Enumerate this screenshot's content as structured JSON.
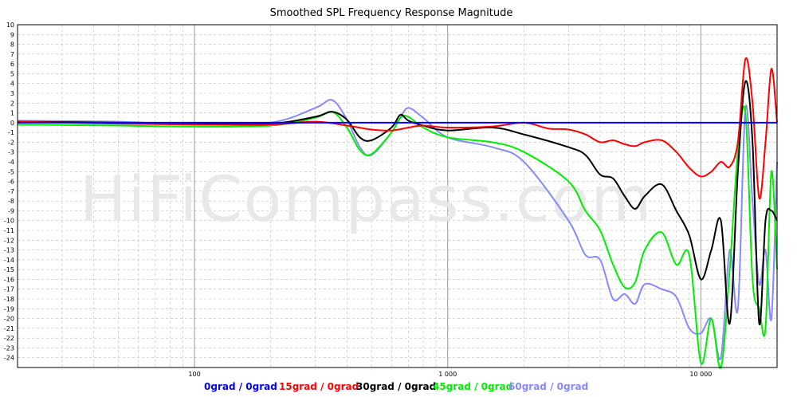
{
  "chart_data": {
    "type": "line",
    "title": "Smoothed SPL Frequency Response Magnitude",
    "watermark": "HiFiCompass.com",
    "xscale": "log",
    "xlim": [
      20,
      20000
    ],
    "ylim": [
      -25,
      10
    ],
    "x_tick_labels": [
      {
        "value": 100,
        "label": "100"
      },
      {
        "value": 1000,
        "label": "1 000"
      },
      {
        "value": 10000,
        "label": "10 000"
      }
    ],
    "y_ticks": [
      10,
      9,
      8,
      7,
      6,
      5,
      4,
      3,
      2,
      1,
      0,
      -1,
      -2,
      -3,
      -4,
      -5,
      -6,
      -7,
      -8,
      -9,
      -10,
      -11,
      -12,
      -13,
      -14,
      -15,
      -16,
      -17,
      -18,
      -19,
      -20,
      -21,
      -22,
      -23,
      -24
    ],
    "grid": true,
    "legend_position": "bottom",
    "colors": {
      "background": "#ffffff",
      "grid_major": "#999999",
      "grid_minor": "#bbbbbb",
      "axis": "#000000"
    },
    "series": [
      {
        "name": "0grad / 0grad",
        "color": "#0000ff",
        "points": [
          [
            20,
            0
          ],
          [
            20000,
            0
          ]
        ]
      },
      {
        "name": "15grad / 0grad",
        "color": "#ff0000",
        "points": [
          [
            20,
            0.1
          ],
          [
            50,
            -0.1
          ],
          [
            100,
            -0.2
          ],
          [
            200,
            -0.2
          ],
          [
            300,
            0.1
          ],
          [
            400,
            -0.3
          ],
          [
            500,
            -0.7
          ],
          [
            600,
            -0.8
          ],
          [
            700,
            -0.5
          ],
          [
            800,
            -0.3
          ],
          [
            1000,
            -0.5
          ],
          [
            1500,
            -0.4
          ],
          [
            2000,
            0
          ],
          [
            2500,
            -0.6
          ],
          [
            3000,
            -0.7
          ],
          [
            3500,
            -1.2
          ],
          [
            4000,
            -2
          ],
          [
            4500,
            -1.8
          ],
          [
            5000,
            -2.2
          ],
          [
            5500,
            -2.4
          ],
          [
            6000,
            -2
          ],
          [
            7000,
            -1.8
          ],
          [
            8000,
            -3
          ],
          [
            9000,
            -4.6
          ],
          [
            10000,
            -5.5
          ],
          [
            11000,
            -5
          ],
          [
            12000,
            -4
          ],
          [
            13000,
            -4.5
          ],
          [
            14000,
            -2
          ],
          [
            15000,
            6.5
          ],
          [
            16000,
            2
          ],
          [
            17000,
            -7.7
          ],
          [
            18000,
            -2
          ],
          [
            19000,
            5.5
          ],
          [
            20000,
            0
          ]
        ]
      },
      {
        "name": "30grad / 0grad",
        "color": "#000000",
        "points": [
          [
            20,
            0.1
          ],
          [
            50,
            0
          ],
          [
            100,
            -0.1
          ],
          [
            200,
            -0.1
          ],
          [
            300,
            0.6
          ],
          [
            350,
            1.1
          ],
          [
            400,
            0.3
          ],
          [
            450,
            -1.5
          ],
          [
            500,
            -1.8
          ],
          [
            600,
            -0.5
          ],
          [
            650,
            0.8
          ],
          [
            700,
            0.2
          ],
          [
            800,
            -0.3
          ],
          [
            1000,
            -0.8
          ],
          [
            1500,
            -0.5
          ],
          [
            2000,
            -1.2
          ],
          [
            3000,
            -2.5
          ],
          [
            3500,
            -3.3
          ],
          [
            4000,
            -5.3
          ],
          [
            4500,
            -5.7
          ],
          [
            5000,
            -7.5
          ],
          [
            5500,
            -8.8
          ],
          [
            6000,
            -7.5
          ],
          [
            7000,
            -6.3
          ],
          [
            8000,
            -9
          ],
          [
            9000,
            -11.5
          ],
          [
            10000,
            -16
          ],
          [
            11000,
            -13
          ],
          [
            12000,
            -10
          ],
          [
            13000,
            -20.5
          ],
          [
            14000,
            -5
          ],
          [
            15000,
            4.2
          ],
          [
            16000,
            -2
          ],
          [
            17000,
            -20.5
          ],
          [
            18000,
            -10
          ],
          [
            19000,
            -9
          ],
          [
            20000,
            -10
          ]
        ]
      },
      {
        "name": "45grad / 0grad",
        "color": "#00ee00",
        "points": [
          [
            20,
            -0.2
          ],
          [
            50,
            -0.3
          ],
          [
            100,
            -0.4
          ],
          [
            200,
            -0.3
          ],
          [
            300,
            0.5
          ],
          [
            350,
            1.1
          ],
          [
            400,
            -0.5
          ],
          [
            450,
            -2.8
          ],
          [
            500,
            -3.2
          ],
          [
            600,
            -1
          ],
          [
            650,
            0.5
          ],
          [
            700,
            0.6
          ],
          [
            800,
            -0.5
          ],
          [
            1000,
            -1.5
          ],
          [
            1500,
            -2
          ],
          [
            2000,
            -3
          ],
          [
            3000,
            -6
          ],
          [
            3500,
            -9
          ],
          [
            4000,
            -11
          ],
          [
            4500,
            -14.5
          ],
          [
            5000,
            -16.8
          ],
          [
            5500,
            -16.3
          ],
          [
            6000,
            -13
          ],
          [
            7000,
            -11.2
          ],
          [
            8000,
            -14.5
          ],
          [
            9000,
            -13.5
          ],
          [
            10000,
            -24.5
          ],
          [
            11000,
            -20
          ],
          [
            12000,
            -25
          ],
          [
            13000,
            -15
          ],
          [
            14000,
            -3
          ],
          [
            15000,
            1
          ],
          [
            16000,
            -16
          ],
          [
            17000,
            -19
          ],
          [
            18000,
            -21
          ],
          [
            19000,
            -5
          ],
          [
            20000,
            -15
          ]
        ]
      },
      {
        "name": "60grad / 0grad",
        "color": "#8888ff",
        "points": [
          [
            20,
            0.2
          ],
          [
            50,
            0.1
          ],
          [
            100,
            -0.2
          ],
          [
            200,
            0
          ],
          [
            300,
            1.5
          ],
          [
            350,
            2.3
          ],
          [
            400,
            0.3
          ],
          [
            450,
            -2.5
          ],
          [
            500,
            -3.3
          ],
          [
            600,
            -1
          ],
          [
            650,
            0.5
          ],
          [
            700,
            1.5
          ],
          [
            800,
            0.5
          ],
          [
            1000,
            -1.5
          ],
          [
            1500,
            -2.5
          ],
          [
            2000,
            -4
          ],
          [
            3000,
            -10
          ],
          [
            3500,
            -13.5
          ],
          [
            4000,
            -14
          ],
          [
            4500,
            -18
          ],
          [
            5000,
            -17.5
          ],
          [
            5500,
            -18.5
          ],
          [
            6000,
            -16.5
          ],
          [
            7000,
            -17
          ],
          [
            8000,
            -17.8
          ],
          [
            9000,
            -21
          ],
          [
            10000,
            -21.5
          ],
          [
            11000,
            -20
          ],
          [
            12000,
            -24
          ],
          [
            13000,
            -13
          ],
          [
            14000,
            -19
          ],
          [
            15000,
            1.5
          ],
          [
            16000,
            -8
          ],
          [
            17000,
            -16.5
          ],
          [
            18000,
            -13
          ],
          [
            19000,
            -20
          ],
          [
            20000,
            -4
          ]
        ]
      }
    ]
  }
}
